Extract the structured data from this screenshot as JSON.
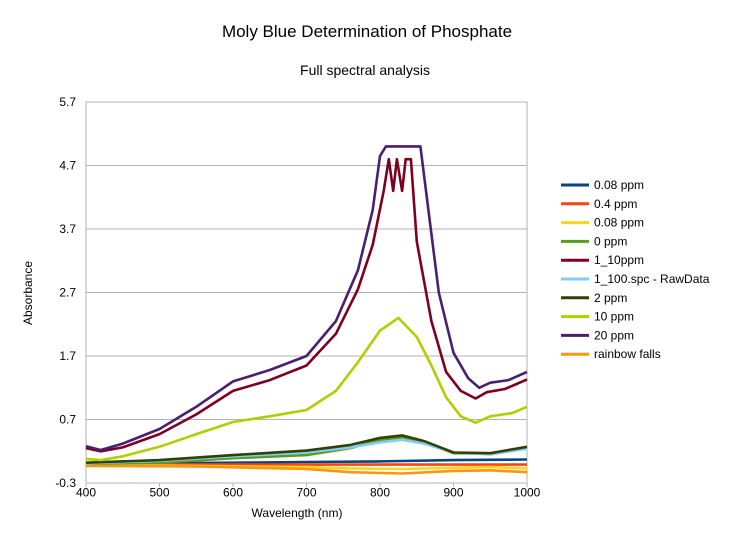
{
  "chart_data": {
    "type": "line",
    "title": "Moly Blue Determination of Phosphate",
    "subtitle": "Full spectral analysis",
    "xlabel": "Wavelength (nm)",
    "ylabel": "Absorbance",
    "xlim": [
      400,
      1000
    ],
    "ylim": [
      -0.3,
      5.7
    ],
    "x_ticks": [
      "400",
      "500",
      "600",
      "700",
      "800",
      "900",
      "1000"
    ],
    "y_ticks": [
      "-0.3",
      "0.7",
      "1.7",
      "2.7",
      "3.7",
      "4.7",
      "5.7"
    ],
    "grid": "horizontal",
    "legend_position": "right",
    "series": [
      {
        "name": "0.08 ppm",
        "color": "#004586",
        "points": [
          [
            400,
            0.0
          ],
          [
            500,
            0.01
          ],
          [
            600,
            0.02
          ],
          [
            700,
            0.03
          ],
          [
            800,
            0.04
          ],
          [
            900,
            0.06
          ],
          [
            1000,
            0.07
          ]
        ]
      },
      {
        "name": "0.4 ppm",
        "color": "#ff420e",
        "points": [
          [
            400,
            -0.01
          ],
          [
            500,
            -0.01
          ],
          [
            600,
            -0.01
          ],
          [
            700,
            -0.01
          ],
          [
            800,
            -0.01
          ],
          [
            900,
            -0.01
          ],
          [
            1000,
            -0.01
          ]
        ]
      },
      {
        "name": "0.08 ppm",
        "color": "#ffd320",
        "points": [
          [
            400,
            -0.02
          ],
          [
            550,
            -0.03
          ],
          [
            700,
            -0.05
          ],
          [
            760,
            -0.07
          ],
          [
            830,
            -0.08
          ],
          [
            900,
            -0.06
          ],
          [
            950,
            -0.05
          ],
          [
            1000,
            -0.07
          ]
        ]
      },
      {
        "name": "0 ppm",
        "color": "#579d1c",
        "points": [
          [
            400,
            0.0
          ],
          [
            500,
            0.02
          ],
          [
            600,
            0.09
          ],
          [
            700,
            0.14
          ],
          [
            760,
            0.25
          ],
          [
            800,
            0.38
          ],
          [
            830,
            0.42
          ],
          [
            860,
            0.34
          ],
          [
            900,
            0.17
          ],
          [
            950,
            0.16
          ],
          [
            1000,
            0.25
          ]
        ]
      },
      {
        "name": "1_10ppm",
        "color": "#7e0021",
        "points": [
          [
            400,
            0.25
          ],
          [
            420,
            0.2
          ],
          [
            450,
            0.26
          ],
          [
            500,
            0.47
          ],
          [
            550,
            0.78
          ],
          [
            600,
            1.15
          ],
          [
            650,
            1.32
          ],
          [
            700,
            1.55
          ],
          [
            740,
            2.05
          ],
          [
            770,
            2.75
          ],
          [
            790,
            3.45
          ],
          [
            805,
            4.3
          ],
          [
            812,
            4.8
          ],
          [
            818,
            4.3
          ],
          [
            823,
            4.8
          ],
          [
            830,
            4.3
          ],
          [
            835,
            4.8
          ],
          [
            842,
            4.8
          ],
          [
            850,
            3.5
          ],
          [
            870,
            2.25
          ],
          [
            890,
            1.45
          ],
          [
            910,
            1.15
          ],
          [
            930,
            1.03
          ],
          [
            945,
            1.13
          ],
          [
            970,
            1.18
          ],
          [
            1000,
            1.33
          ]
        ]
      },
      {
        "name": "1_100.spc - RawData",
        "color": "#83caff",
        "points": [
          [
            400,
            0.01
          ],
          [
            500,
            0.05
          ],
          [
            600,
            0.12
          ],
          [
            700,
            0.18
          ],
          [
            760,
            0.26
          ],
          [
            800,
            0.34
          ],
          [
            830,
            0.38
          ],
          [
            860,
            0.32
          ],
          [
            900,
            0.18
          ],
          [
            950,
            0.15
          ],
          [
            1000,
            0.24
          ]
        ]
      },
      {
        "name": "2 ppm",
        "color": "#314004",
        "points": [
          [
            400,
            0.02
          ],
          [
            500,
            0.06
          ],
          [
            600,
            0.14
          ],
          [
            700,
            0.21
          ],
          [
            760,
            0.3
          ],
          [
            800,
            0.41
          ],
          [
            830,
            0.45
          ],
          [
            860,
            0.36
          ],
          [
            900,
            0.18
          ],
          [
            950,
            0.17
          ],
          [
            1000,
            0.27
          ]
        ]
      },
      {
        "name": "10 ppm",
        "color": "#aecf00",
        "points": [
          [
            400,
            0.08
          ],
          [
            420,
            0.06
          ],
          [
            450,
            0.12
          ],
          [
            500,
            0.27
          ],
          [
            550,
            0.47
          ],
          [
            600,
            0.66
          ],
          [
            650,
            0.75
          ],
          [
            700,
            0.85
          ],
          [
            740,
            1.15
          ],
          [
            770,
            1.6
          ],
          [
            800,
            2.1
          ],
          [
            825,
            2.3
          ],
          [
            850,
            2.0
          ],
          [
            870,
            1.55
          ],
          [
            890,
            1.05
          ],
          [
            910,
            0.75
          ],
          [
            930,
            0.65
          ],
          [
            950,
            0.75
          ],
          [
            980,
            0.8
          ],
          [
            1000,
            0.9
          ]
        ]
      },
      {
        "name": "20 ppm",
        "color": "#4b1f6f",
        "points": [
          [
            400,
            0.28
          ],
          [
            420,
            0.22
          ],
          [
            450,
            0.32
          ],
          [
            500,
            0.55
          ],
          [
            550,
            0.9
          ],
          [
            600,
            1.3
          ],
          [
            650,
            1.48
          ],
          [
            700,
            1.7
          ],
          [
            740,
            2.25
          ],
          [
            770,
            3.05
          ],
          [
            790,
            4.0
          ],
          [
            800,
            4.85
          ],
          [
            808,
            5.0
          ],
          [
            855,
            5.0
          ],
          [
            862,
            4.35
          ],
          [
            880,
            2.7
          ],
          [
            900,
            1.75
          ],
          [
            920,
            1.35
          ],
          [
            935,
            1.2
          ],
          [
            950,
            1.28
          ],
          [
            975,
            1.32
          ],
          [
            1000,
            1.45
          ]
        ]
      },
      {
        "name": "rainbow falls",
        "color": "#ff950e",
        "points": [
          [
            400,
            -0.03
          ],
          [
            550,
            -0.04
          ],
          [
            700,
            -0.08
          ],
          [
            760,
            -0.13
          ],
          [
            830,
            -0.15
          ],
          [
            900,
            -0.11
          ],
          [
            950,
            -0.1
          ],
          [
            1000,
            -0.13
          ]
        ]
      }
    ]
  }
}
